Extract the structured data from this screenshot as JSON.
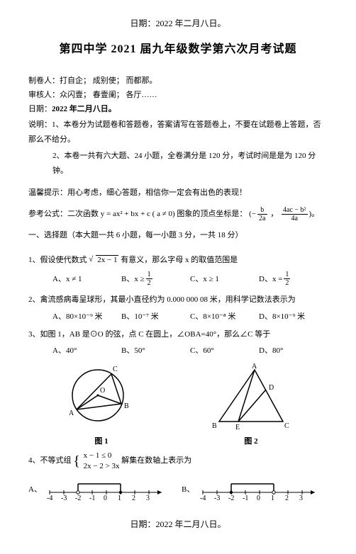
{
  "top_date": "日期：2022 年二月八日。",
  "bottom_date": "日期：2022 年二月八日。",
  "title": "第四中学 2021 届九年级数学第六次月考试题",
  "meta": {
    "line1_label": "制卷人：",
    "line1_names": "打自企；  成别使；  而都那。",
    "line2_label": "审核人：",
    "line2_names": "众闪壹；  春壹阑；  各厅……",
    "line3_label": "日期：",
    "line3_value": "2022 年二月八日。"
  },
  "instructions": {
    "lead": "说明：",
    "s1": "1、本卷分为试题卷和答题卷，答案请写在答题卷上，不要在试题卷上答题，否那么不给分。",
    "s2": "2、本卷一共有六大题、24 小题，全卷满分是 120 分，考试时间是是为 120 分钟。"
  },
  "tip": "温馨提示：用心考虑，细心答题，相信你一定会有出色的表现！",
  "formula_label": "参考公式：二次函数 ",
  "formula_body": "y = ax² + bx + c ( a ≠ 0) 图象的顶点坐标是：",
  "formula_vertex_left_num": "b",
  "formula_vertex_left_den": "2a",
  "formula_vertex_right_num": "4ac − b²",
  "formula_vertex_right_den": "4a",
  "part1_header": "一、选择题（本大题一共 6 小题，每一小题 3 分，一共 18 分）",
  "q1": {
    "stem_a": "1、假设使代数式",
    "rad": "2x − 1",
    "stem_b": "有意义，那么字母 x 的取值范围是",
    "A": "A、x ≠ 1",
    "B_prefix": "B、x ≥ ",
    "B_num": "1",
    "B_den": "2",
    "C": "C、x ≥ 1",
    "D_prefix": "D、x = ",
    "D_num": "1",
    "D_den": "2"
  },
  "q2": {
    "stem": "2、禽流感病毒呈球形，其最小直径约为 0.000 000 08 米，用科学记数法表示为",
    "A": "A、80×10⁻⁹ 米",
    "B": "B、10⁻⁷ 米",
    "C": "C、8×10⁻⁸ 米",
    "D": "D、8×10⁻⁹ 米"
  },
  "q3": {
    "stem": "3、如图 1，AB 是⊙O 的弦，点 C 在圆上，∠OBA=40°，那么∠C 等于",
    "A": "A、40°",
    "B": "B、50°",
    "C": "C、60°",
    "D": "D、80°",
    "fig1label": "图 1",
    "fig2label": "图 2",
    "fig1": {
      "O": "O",
      "A": "A",
      "B": "B",
      "C": "C"
    },
    "fig2": {
      "A": "A",
      "B": "B",
      "C": "C",
      "D": "D",
      "E": "E"
    }
  },
  "q4": {
    "stem_a": "4、不等式组",
    "eq1": "x − 1 ≤ 0",
    "eq2": "2x − 2 > 3x",
    "stem_b": "  解集在数轴上表示为",
    "A": "A、",
    "B": "B、",
    "ticksA": [
      "-4",
      "-3",
      "-2",
      "-1",
      "0",
      "1",
      "2",
      "3"
    ],
    "ticksB": [
      "-4",
      "-3",
      "-2",
      "-1",
      "0",
      "1",
      "2",
      "3"
    ]
  }
}
